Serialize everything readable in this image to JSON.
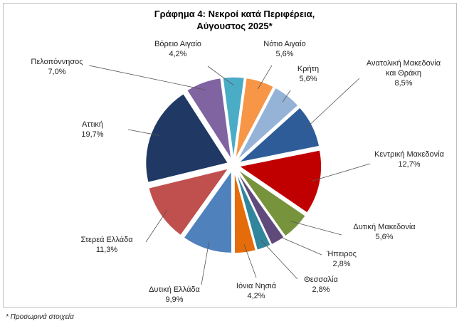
{
  "chart_data": {
    "type": "pie",
    "title": "Γράφημα 4: Νεκροί κατά Περιφέρεια,",
    "subtitle": "Αύγουστος 2025*",
    "categories": [
      "Βόρειο Αιγαίο",
      "Νότιο Αιγαίο",
      "Κρήτη",
      "Ανατολική Μακεδονία και Θράκη",
      "Κεντρική Μακεδονία",
      "Δυτική Μακεδονία",
      "Ήπειρος",
      "Θεσσαλία",
      "Ιόνια Νησιά",
      "Δυτική Ελλάδα",
      "Στερεά Ελλάδα",
      "Αττική",
      "Πελοπόννησος"
    ],
    "values": [
      4.2,
      5.6,
      5.6,
      8.5,
      12.7,
      5.6,
      2.8,
      2.8,
      4.2,
      9.9,
      11.3,
      19.7,
      7.0
    ],
    "value_labels": [
      "4,2%",
      "5,6%",
      "5,6%",
      "8,5%",
      "12,7%",
      "5,6%",
      "2,8%",
      "2,8%",
      "4,2%",
      "9,9%",
      "11,3%",
      "19,7%",
      "7,0%"
    ],
    "colors": [
      "#4bacc6",
      "#f79646",
      "#95b3d7",
      "#2e5c99",
      "#c00000",
      "#77933c",
      "#604a7b",
      "#31859c",
      "#e46c0a",
      "#4f81bd",
      "#c0504d",
      "#1f3864",
      "#8064a2"
    ],
    "footnote": "* Προσωρινά στοιχεία"
  }
}
